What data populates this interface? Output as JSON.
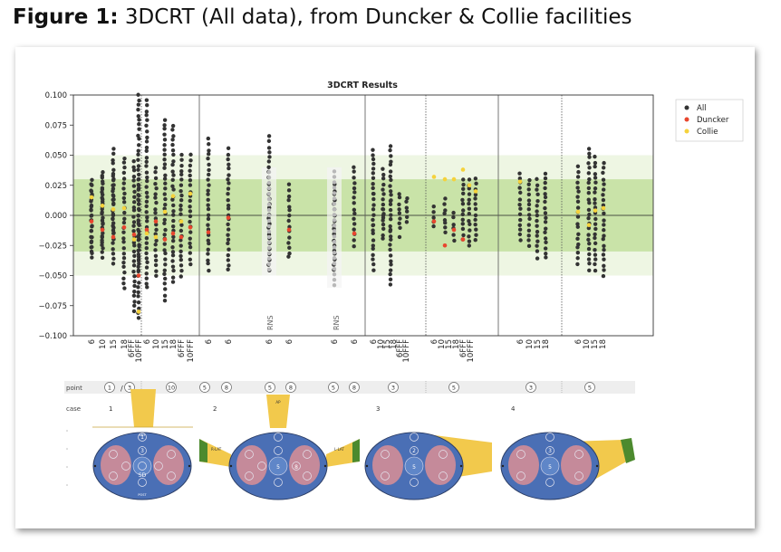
{
  "figure": {
    "label": "Figure 1:",
    "title": "3DCRT (All data), from Duncker & Collie facilities"
  },
  "colors": {
    "all": "#333333",
    "duncker": "#e8462e",
    "collie": "#f5d23c",
    "rns": "#b8b8b8",
    "band_outer": "#eef6e3",
    "band_inner": "#c9e3a8",
    "phantom_blue": "#4a6fb5",
    "phantom_pink": "#c58a9a",
    "beam_yellow": "#f2c94c",
    "wedge_green": "#4c8a2e"
  },
  "chart_data": {
    "type": "scatter",
    "title": "3DCRT Results",
    "xlabel": "",
    "ylabel": "",
    "ylim": [
      -0.1,
      0.1
    ],
    "yticks": [
      "0.100",
      "0.075",
      "0.050",
      "0.025",
      "0.000",
      "−0.025",
      "−0.050",
      "−0.075",
      "−0.100"
    ],
    "tolerance_bands": [
      0.05,
      0.03
    ],
    "legend": {
      "placement": "outside-right",
      "entries": [
        "All",
        "Duncker",
        "Collie"
      ]
    },
    "groups": [
      {
        "point": "1/3",
        "case": "1",
        "energies": [
          "6",
          "10",
          "15",
          "18",
          "6FFF",
          "10FFF"
        ]
      },
      {
        "point": "10",
        "case": "1",
        "energies": [
          "6",
          "10",
          "15",
          "18",
          "6FFF",
          "10FFF"
        ]
      },
      {
        "point": "5",
        "case": "2",
        "energies": [
          "6"
        ]
      },
      {
        "point": "8",
        "case": "2",
        "energies": [
          "6"
        ]
      },
      {
        "point": "5",
        "case": "2",
        "energies": [
          "6"
        ],
        "note": "RNS"
      },
      {
        "point": "8",
        "case": "2",
        "energies": [
          "6"
        ]
      },
      {
        "point": "5",
        "case": "2",
        "energies": [
          "6"
        ],
        "note": "RNS"
      },
      {
        "point": "8",
        "case": "2",
        "energies": [
          "6"
        ]
      },
      {
        "point": "3",
        "case": "3",
        "energies": [
          "6",
          "10",
          "15",
          "18",
          "6FFF",
          "10FFF"
        ]
      },
      {
        "point": "5",
        "case": "3",
        "energies": [
          "6",
          "10",
          "15",
          "18",
          "6FFF",
          "10FFF"
        ]
      },
      {
        "point": "3",
        "case": "4",
        "energies": [
          "6",
          "10",
          "15",
          "18"
        ]
      },
      {
        "point": "5",
        "case": "4",
        "energies": [
          "6",
          "10",
          "15",
          "18"
        ]
      }
    ],
    "series": [
      {
        "name": "All",
        "ranges": [
          [
            -0.03,
            0.025
          ],
          [
            -0.035,
            0.032
          ],
          [
            -0.04,
            0.055
          ],
          [
            -0.06,
            0.048
          ],
          [
            -0.08,
            0.045
          ],
          [
            -0.085,
            0.03
          ],
          [
            -0.045,
            0.1
          ],
          [
            -0.06,
            0.095
          ],
          [
            -0.05,
            0.04
          ],
          [
            -0.07,
            0.08
          ],
          [
            -0.055,
            0.075
          ],
          [
            -0.05,
            0.05
          ],
          [
            -0.04,
            0.05
          ],
          [
            -0.045,
            0.063
          ],
          [
            -0.045,
            0.055
          ],
          [
            -0.045,
            0.065
          ],
          [
            -0.035,
            0.025
          ],
          [
            -0.045,
            0.025
          ],
          [
            -0.025,
            0.04
          ],
          [
            -0.045,
            0.055
          ],
          [
            -0.02,
            0.038
          ],
          [
            -0.058,
            0.058
          ],
          [
            -0.01,
            0.018
          ],
          [
            -0.005,
            0.015
          ],
          [
            -0.01,
            0.008
          ],
          [
            -0.015,
            0.013
          ],
          [
            -0.02,
            0.002
          ],
          [
            -0.02,
            0.03
          ],
          [
            -0.025,
            0.03
          ],
          [
            -0.02,
            0.03
          ],
          [
            -0.02,
            0.035
          ],
          [
            -0.025,
            0.03
          ],
          [
            -0.035,
            0.03
          ],
          [
            -0.035,
            0.035
          ],
          [
            -0.04,
            0.04
          ],
          [
            -0.045,
            0.056
          ],
          [
            -0.045,
            0.048
          ],
          [
            -0.05,
            0.043
          ],
          [
            -0.035,
            0.03
          ],
          [
            -0.025,
            0.035
          ],
          [
            -0.02,
            0.033
          ]
        ]
      },
      {
        "name": "Duncker",
        "values": [
          -0.005,
          -0.012,
          -0.018,
          -0.01,
          -0.016,
          -0.05,
          -0.012,
          -0.005,
          -0.02,
          -0.015,
          -0.018,
          -0.01,
          -0.014,
          -0.002,
          -0.012,
          -0.015,
          -0.005,
          -0.025,
          -0.012,
          -0.02
        ]
      },
      {
        "name": "Collie",
        "values": [
          0.015,
          0.008,
          0.005,
          0.006,
          -0.02,
          -0.08,
          -0.015,
          -0.018,
          0.003,
          0.016,
          -0.005,
          0.018,
          0.032,
          0.03,
          0.03,
          0.038,
          0.025,
          0.02,
          0.028,
          0.003,
          -0.008,
          0.004,
          0.006
        ]
      }
    ],
    "annotations": [
      "RNS",
      "RNS"
    ]
  },
  "point_row": {
    "label": "point",
    "circles": [
      "1",
      "3",
      "10",
      "5",
      "8",
      "5",
      "8",
      "5",
      "8",
      "3",
      "5",
      "3",
      "5"
    ],
    "separator": "/"
  },
  "case_row": {
    "label": "case",
    "cases": [
      "1",
      "2",
      "3",
      "4"
    ]
  },
  "phantom_labels": {
    "ant": "ANT",
    "post": "POST",
    "ap": "AP",
    "r_lat": "R-LAT",
    "l_lat": "L-LAT",
    "sd": "SD",
    "n1": "1",
    "n2": "2",
    "n3": "3",
    "n5": "5",
    "n8": "8"
  }
}
